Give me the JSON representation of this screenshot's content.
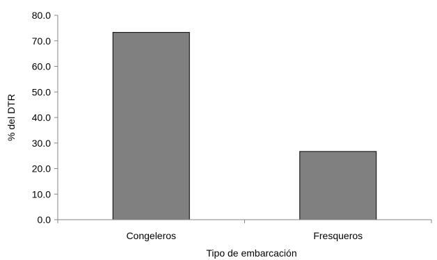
{
  "chart_data": {
    "type": "bar",
    "title": "",
    "xlabel": "Tipo de embarcación",
    "ylabel": "% del DTR",
    "categories": [
      "Congeleros",
      "Fresqueros"
    ],
    "values": [
      73.3,
      26.7
    ],
    "ylim": [
      0,
      80
    ],
    "yticks": [
      "0.0",
      "10.0",
      "20.0",
      "30.0",
      "40.0",
      "50.0",
      "60.0",
      "70.0",
      "80.0"
    ],
    "grid": false,
    "legend": "none",
    "bar_color": "#808080",
    "bar_outline": "#000000",
    "axis_color": "#868686"
  }
}
